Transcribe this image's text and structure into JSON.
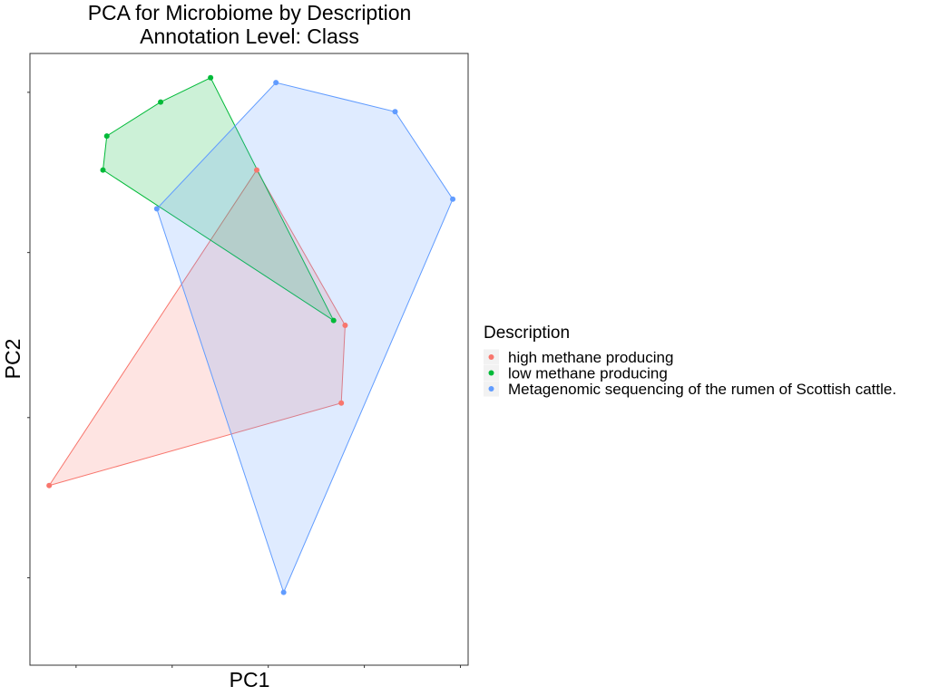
{
  "chart_data": {
    "type": "scatter",
    "title": [
      "PCA for Microbiome by Description",
      "Annotation Level: Class"
    ],
    "xlabel": "PC1",
    "ylabel": "PC2",
    "grid": false,
    "show_tick_labels": false,
    "hull_polygons": true,
    "legend_position": "right",
    "legend_title": "Description",
    "xlim": [
      -0.12,
      1.02
    ],
    "ylim": [
      -0.18,
      1.08
    ],
    "x_ticks": [
      0,
      0.25,
      0.5,
      0.75,
      1
    ],
    "y_ticks": [
      0,
      0.33,
      0.67,
      1
    ],
    "series": [
      {
        "name": "high methane producing",
        "color": "#F8766D",
        "points": [
          [
            -0.07,
            0.19
          ],
          [
            0.47,
            0.84
          ],
          [
            0.7,
            0.52
          ],
          [
            0.69,
            0.36
          ]
        ]
      },
      {
        "name": "low methane producing",
        "color": "#00BA38",
        "points": [
          [
            0.22,
            0.98
          ],
          [
            0.08,
            0.91
          ],
          [
            0.07,
            0.84
          ],
          [
            0.67,
            0.53
          ],
          [
            0.35,
            1.03
          ]
        ]
      },
      {
        "name": "Metagenomic sequencing of the rumen of Scottish cattle.",
        "color": "#619CFF",
        "points": [
          [
            0.52,
            1.02
          ],
          [
            0.83,
            0.96
          ],
          [
            0.98,
            0.78
          ],
          [
            0.54,
            -0.03
          ],
          [
            0.21,
            0.76
          ]
        ]
      }
    ]
  }
}
